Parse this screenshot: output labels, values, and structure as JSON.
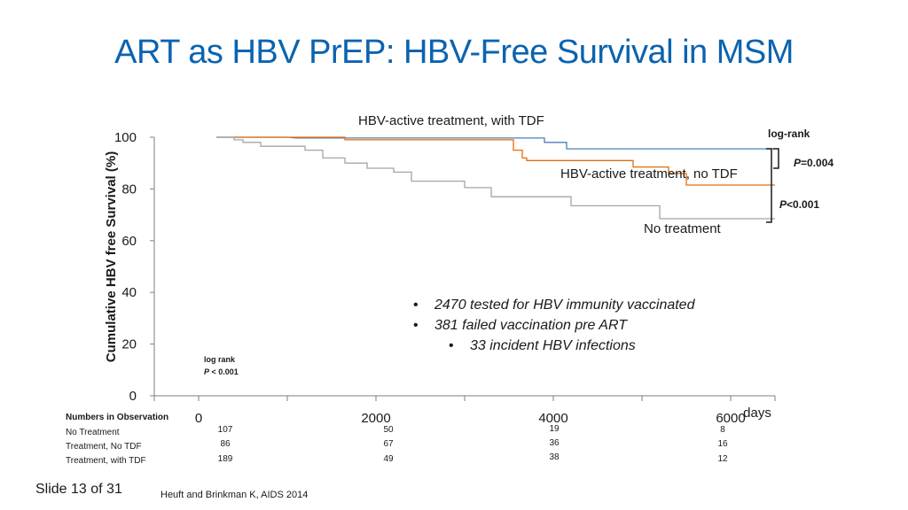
{
  "slide": {
    "title": "ART as HBV PrEP: HBV-Free Survival in MSM",
    "slide_number": "Slide 13 of 31",
    "citation": "Heuft and Brinkman K, AIDS 2014"
  },
  "bullets": {
    "items": [
      {
        "marker": "•",
        "text": "2470 tested for HBV immunity vaccinated"
      },
      {
        "marker": "•",
        "text": "381 failed vaccination pre ART"
      },
      {
        "marker": "•",
        "text": "33 incident HBV infections"
      }
    ]
  },
  "annotations": {
    "logrank_left_1": "log rank",
    "logrank_left_p": "P",
    "logrank_left_val": " < 0.001",
    "logrank_right_title": "log-rank",
    "p1_p": "P",
    "p1_val": "=0.004",
    "p2_p": "P",
    "p2_val": "<0.001"
  },
  "observations": {
    "header": "Numbers in Observation",
    "rows": [
      {
        "label": "No Treatment",
        "values": [
          "107",
          "50",
          "19",
          "8"
        ]
      },
      {
        "label": "Treatment, No TDF",
        "values": [
          "86",
          "67",
          "36",
          "16"
        ]
      },
      {
        "label": "Treatment, with TDF",
        "values": [
          "189",
          "49",
          "38",
          "12"
        ]
      }
    ]
  },
  "chart_data": {
    "type": "line",
    "step": true,
    "title": "",
    "xlabel": "days",
    "ylabel": "Cumulative HBV free Survival (%)",
    "xlim": [
      -500,
      6500
    ],
    "ylim": [
      0,
      100
    ],
    "x_ticks": [
      0,
      2000,
      4000,
      6000
    ],
    "y_ticks": [
      0,
      20,
      40,
      60,
      80,
      100
    ],
    "grid": false,
    "series": [
      {
        "name": "HBV-active treatment, with TDF",
        "color": "#4a7ebb",
        "points": [
          [
            200,
            100
          ],
          [
            1000,
            100
          ],
          [
            1100,
            99.7
          ],
          [
            3900,
            99.7
          ],
          [
            3900,
            98
          ],
          [
            4150,
            98
          ],
          [
            4150,
            95.5
          ],
          [
            6500,
            95.5
          ]
        ]
      },
      {
        "name": "HBV-active treatment, no TDF",
        "color": "#e46c0a",
        "points": [
          [
            200,
            100
          ],
          [
            1650,
            100
          ],
          [
            1650,
            99
          ],
          [
            3550,
            99
          ],
          [
            3550,
            95
          ],
          [
            3650,
            95
          ],
          [
            3650,
            92
          ],
          [
            3700,
            92
          ],
          [
            3700,
            91
          ],
          [
            4900,
            91
          ],
          [
            4900,
            88.5
          ],
          [
            5300,
            88.5
          ],
          [
            5300,
            86
          ],
          [
            5500,
            86
          ],
          [
            5500,
            81.5
          ],
          [
            6500,
            81.5
          ]
        ]
      },
      {
        "name": "No treatment",
        "color": "#a5a5a5",
        "points": [
          [
            200,
            100
          ],
          [
            400,
            100
          ],
          [
            400,
            99
          ],
          [
            500,
            99
          ],
          [
            500,
            98
          ],
          [
            700,
            98
          ],
          [
            700,
            96.5
          ],
          [
            1200,
            96.5
          ],
          [
            1200,
            95
          ],
          [
            1400,
            95
          ],
          [
            1400,
            92
          ],
          [
            1650,
            92
          ],
          [
            1650,
            90
          ],
          [
            1900,
            90
          ],
          [
            1900,
            88
          ],
          [
            2200,
            88
          ],
          [
            2200,
            86.5
          ],
          [
            2400,
            86.5
          ],
          [
            2400,
            83
          ],
          [
            3000,
            83
          ],
          [
            3000,
            80.5
          ],
          [
            3300,
            80.5
          ],
          [
            3300,
            77
          ],
          [
            4200,
            77
          ],
          [
            4200,
            73.5
          ],
          [
            5200,
            73.5
          ],
          [
            5200,
            68.5
          ],
          [
            6500,
            68.5
          ]
        ]
      }
    ]
  }
}
